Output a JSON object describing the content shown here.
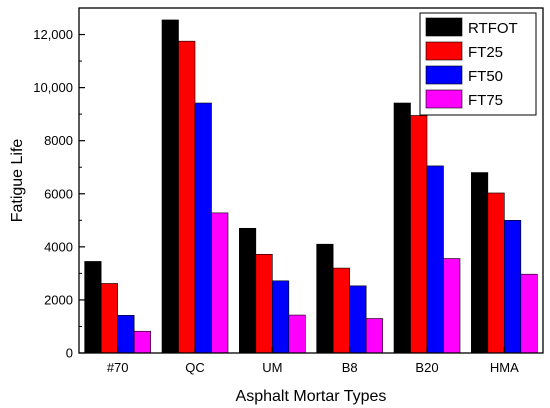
{
  "chart_data": {
    "type": "bar",
    "xlabel": "Asphalt Mortar Types",
    "ylabel": "Fatigue Life",
    "ylim": [
      0,
      13000
    ],
    "yticks": [
      0,
      2000,
      4000,
      6000,
      8000,
      10000,
      12000
    ],
    "ytick_labels": [
      "0",
      "2000",
      "4000",
      "6000",
      "8000",
      "10,000",
      "12,000"
    ],
    "categories": [
      "#70",
      "QC",
      "UM",
      "B8",
      "B20",
      "HMA"
    ],
    "legend_position": "top-right",
    "series": [
      {
        "name": "RTFOT",
        "color": "#000000",
        "values": [
          3450,
          12550,
          4700,
          4100,
          9420,
          6800
        ]
      },
      {
        "name": "FT25",
        "color": "#ff0000",
        "values": [
          2620,
          11750,
          3720,
          3200,
          8950,
          6030
        ]
      },
      {
        "name": "FT50",
        "color": "#0000ff",
        "values": [
          1420,
          9420,
          2720,
          2530,
          7050,
          5000
        ]
      },
      {
        "name": "FT75",
        "color": "#ff00ff",
        "values": [
          820,
          5280,
          1430,
          1300,
          3560,
          2970
        ]
      }
    ]
  }
}
